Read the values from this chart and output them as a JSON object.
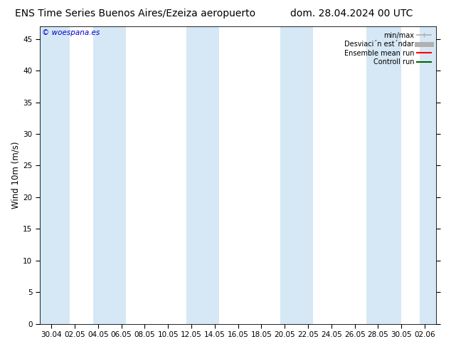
{
  "title_left": "ENS Time Series Buenos Aires/Ezeiza aeropuerto",
  "title_right": "dom. 28.04.2024 00 UTC",
  "ylabel_actual": "Wind 10m (m/s)",
  "ylim": [
    0,
    47
  ],
  "yticks": [
    0,
    5,
    10,
    15,
    20,
    25,
    30,
    35,
    40,
    45
  ],
  "xtick_labels": [
    "30.04",
    "02.05",
    "04.05",
    "06.05",
    "08.05",
    "10.05",
    "12.05",
    "14.05",
    "16.05",
    "18.05",
    "20.05",
    "22.05",
    "24.05",
    "26.05",
    "28.05",
    "30.05",
    "02.06"
  ],
  "bg_color": "#ffffff",
  "plot_bg_color": "#ffffff",
  "band_color": "#d6e8f5",
  "watermark": "© woespana.es",
  "watermark_color": "#0000cc",
  "legend_label_minmax": "min/max",
  "legend_label_std": "Desviaci´n est´ndar",
  "legend_label_ens": "Ensemble mean run",
  "legend_label_ctrl": "Controll run",
  "legend_color_gray": "#b0b0b0",
  "legend_color_red": "#ff0000",
  "legend_color_green": "#006400",
  "title_fontsize": 10,
  "tick_fontsize": 7.5,
  "ylabel_fontsize": 8.5
}
